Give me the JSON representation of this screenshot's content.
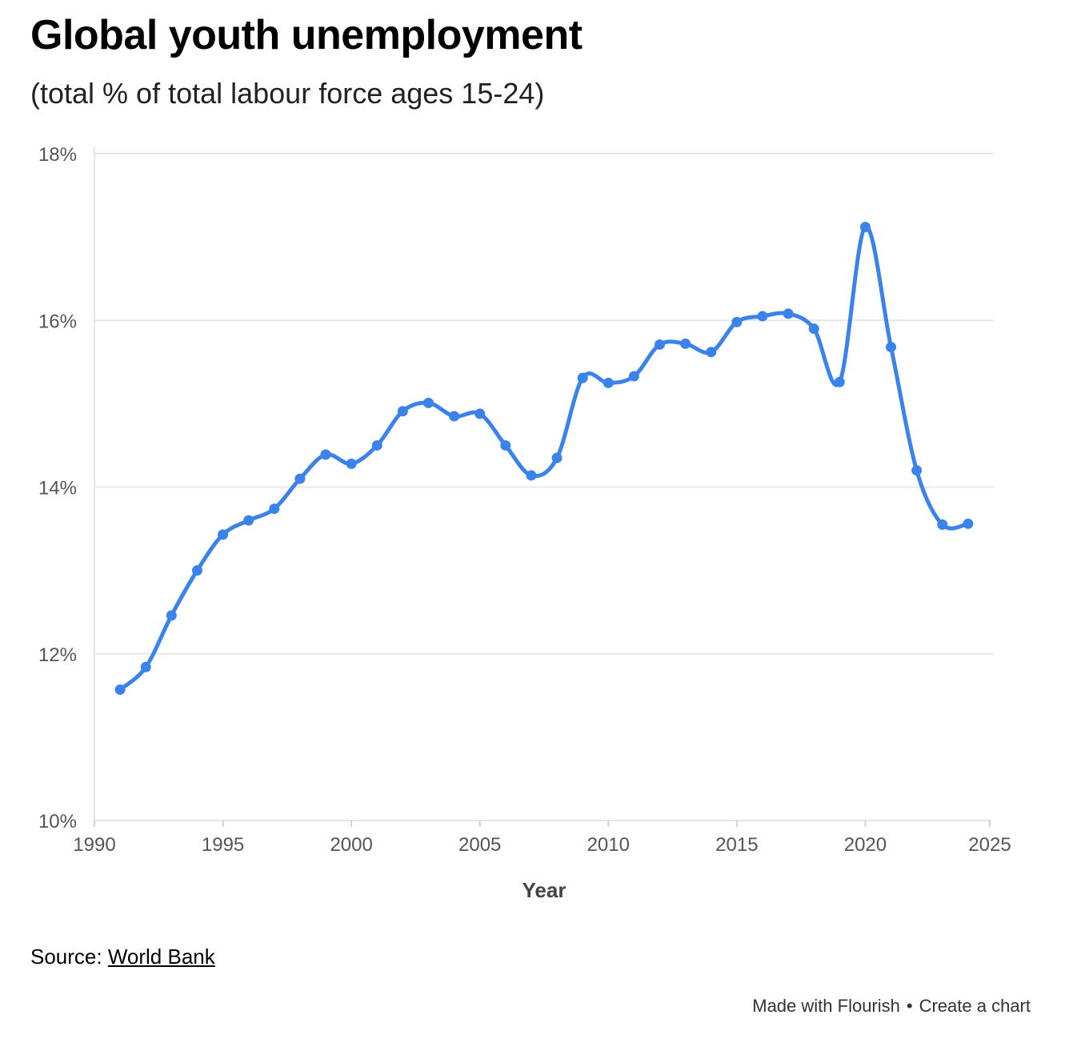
{
  "header": {
    "title": "Global youth unemployment",
    "subtitle": "(total % of total labour force ages 15-24)"
  },
  "source": {
    "prefix": "Source:",
    "link_text": "World Bank"
  },
  "footer": {
    "made_with": "Made with Flourish",
    "separator": "•",
    "create": "Create a chart"
  },
  "chart_data": {
    "type": "line",
    "title": "Global youth unemployment",
    "subtitle": "(total % of total labour force ages 15-24)",
    "xlabel": "Year",
    "ylabel": "",
    "xlim": [
      1990,
      2025
    ],
    "ylim": [
      10,
      18
    ],
    "x_ticks": [
      1990,
      1995,
      2000,
      2005,
      2010,
      2015,
      2020,
      2025
    ],
    "y_ticks": [
      10,
      12,
      14,
      16,
      18
    ],
    "y_tick_suffix": "%",
    "grid": true,
    "color": "#3b83ec",
    "x": [
      1991,
      1992,
      1993,
      1994,
      1995,
      1996,
      1997,
      1998,
      1999,
      2000,
      2001,
      2002,
      2003,
      2004,
      2005,
      2006,
      2007,
      2008,
      2009,
      2010,
      2011,
      2012,
      2013,
      2014,
      2015,
      2016,
      2017,
      2018,
      2019,
      2020,
      2021,
      2022,
      2023,
      2024
    ],
    "values": [
      11.57,
      11.84,
      12.46,
      13.0,
      13.43,
      13.6,
      13.74,
      14.1,
      14.39,
      14.28,
      14.5,
      14.91,
      15.01,
      14.85,
      14.88,
      14.5,
      14.14,
      14.35,
      15.31,
      15.25,
      15.33,
      15.71,
      15.72,
      15.62,
      15.98,
      16.05,
      16.08,
      15.9,
      15.26,
      17.12,
      15.68,
      14.2,
      13.55,
      13.56
    ]
  }
}
